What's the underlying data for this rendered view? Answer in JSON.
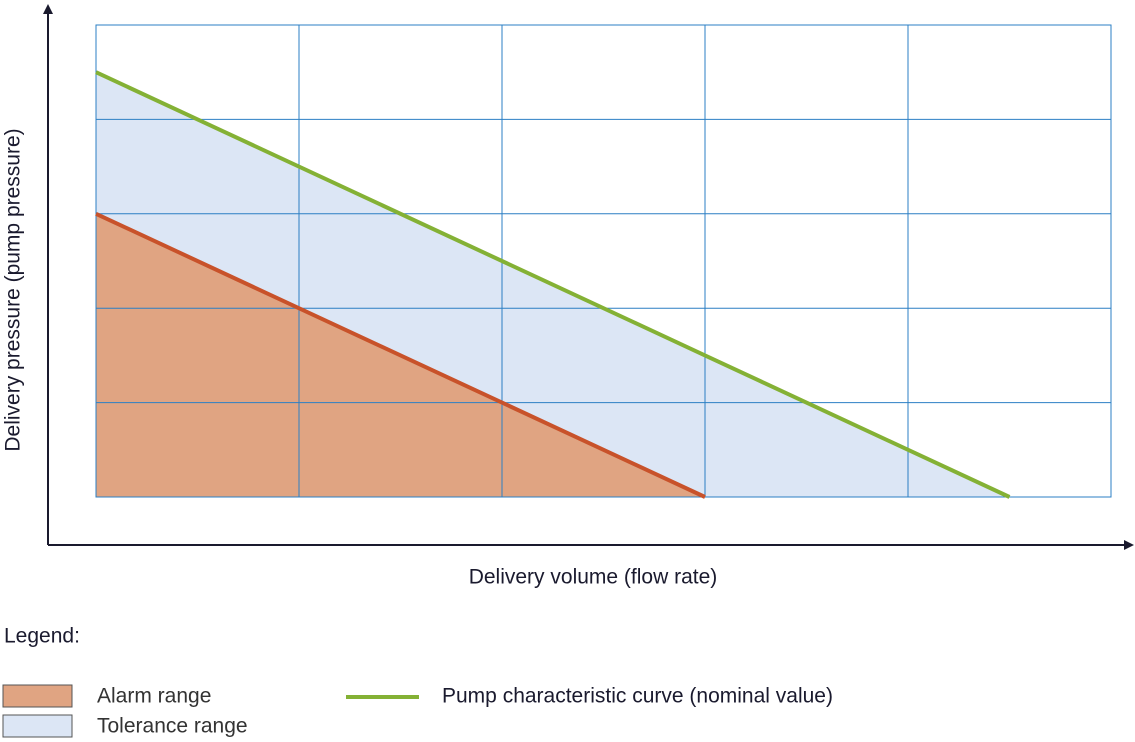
{
  "chart_data": {
    "type": "area",
    "x_label": "Delivery volume (flow rate)",
    "y_label": "Delivery pressure (pump pressure)",
    "legend_title": "Legend:",
    "x": [
      0,
      3,
      4.5
    ],
    "xlim": [
      0,
      5
    ],
    "ylim": [
      0,
      5
    ],
    "series": [
      {
        "name": "Tolerance range",
        "color": "#dce6f5",
        "values": [
          4.5,
          1.5,
          0
        ]
      },
      {
        "name": "Alarm range",
        "color": "#e0a482",
        "line_color": "#c8522a",
        "values": [
          3,
          0,
          null
        ]
      },
      {
        "name": "Pump characteristic curve (nominal value)",
        "color": "#84b135",
        "values": [
          4.5,
          1.5,
          0
        ],
        "line": true
      }
    ]
  }
}
